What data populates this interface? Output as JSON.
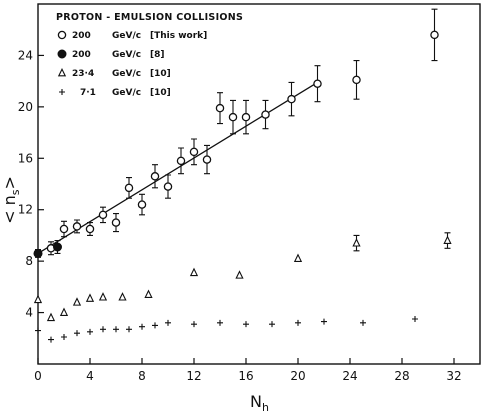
{
  "chart_data": {
    "type": "scatter",
    "title": "",
    "xlabel": "N",
    "xlabel_sub": "h",
    "ylabel": "< n",
    "ylabel_sub": "s",
    "ylabel_tail": ">",
    "xlim": [
      0,
      34
    ],
    "ylim": [
      0,
      28
    ],
    "xticks": [
      0,
      4,
      8,
      12,
      16,
      20,
      24,
      28,
      32
    ],
    "yticks": [
      4,
      8,
      12,
      16,
      20,
      24
    ],
    "grid": false,
    "legend_position": "top-left",
    "legend_title": "PROTON - EMULSION COLLISIONS",
    "series": [
      {
        "name": "200 GeV/c [This work]",
        "marker": "open-circle",
        "x": [
          1,
          2,
          3,
          4,
          5,
          6,
          7,
          8,
          9,
          10,
          11,
          12,
          13,
          14,
          15,
          16,
          17.5,
          19.5,
          21.5,
          24.5,
          30.5
        ],
        "y": [
          9.0,
          10.5,
          10.7,
          10.5,
          11.6,
          11.0,
          13.7,
          12.4,
          14.6,
          13.8,
          15.8,
          16.5,
          15.9,
          19.9,
          19.2,
          19.2,
          19.4,
          20.6,
          21.8,
          22.1,
          25.6
        ],
        "err": [
          0.5,
          0.6,
          0.5,
          0.5,
          0.6,
          0.7,
          0.8,
          0.8,
          0.9,
          0.9,
          1.0,
          1.0,
          1.1,
          1.2,
          1.3,
          1.3,
          1.1,
          1.3,
          1.4,
          1.5,
          2.0
        ]
      },
      {
        "name": "200 GeV/c [8]",
        "marker": "filled-circle",
        "x": [
          0,
          1.5
        ],
        "y": [
          8.6,
          9.1
        ],
        "err": [
          0.3,
          0.5
        ]
      },
      {
        "name": "23.4 GeV/c [10]",
        "marker": "open-triangle",
        "x": [
          0,
          1,
          2,
          3,
          4,
          5,
          6.5,
          8.5,
          12,
          15.5,
          20,
          24.5,
          31.5
        ],
        "y": [
          5.0,
          3.6,
          4.0,
          4.8,
          5.1,
          5.2,
          5.2,
          5.4,
          7.1,
          6.9,
          8.2,
          9.4,
          9.6
        ],
        "err": [
          0,
          0,
          0,
          0,
          0,
          0,
          0,
          0,
          0,
          0,
          0,
          0.6,
          0.6
        ]
      },
      {
        "name": "7.1 GeV/c [10]",
        "marker": "plus",
        "x": [
          0,
          1,
          2,
          3,
          4,
          5,
          6,
          7,
          8,
          9,
          10,
          12,
          14,
          16,
          18,
          20,
          22,
          25,
          29
        ],
        "y": [
          2.6,
          1.9,
          2.1,
          2.4,
          2.5,
          2.7,
          2.7,
          2.7,
          2.9,
          3.0,
          3.2,
          3.1,
          3.2,
          3.1,
          3.1,
          3.2,
          3.3,
          3.2,
          3.5
        ],
        "err": [
          0,
          0,
          0,
          0,
          0,
          0,
          0,
          0,
          0,
          0,
          0,
          0,
          0,
          0,
          0,
          0,
          0,
          0,
          0
        ]
      }
    ],
    "fit_line": {
      "x": [
        0,
        21.5
      ],
      "y": [
        8.6,
        21.9
      ]
    },
    "legend": [
      {
        "marker": "open-circle",
        "energy": "200",
        "unit": "GeV/c",
        "ref": "[This work]"
      },
      {
        "marker": "filled-circle",
        "energy": "200",
        "unit": "GeV/c",
        "ref": "[8]"
      },
      {
        "marker": "open-triangle",
        "energy": "23·4",
        "unit": "GeV/c",
        "ref": "[10]"
      },
      {
        "marker": "plus",
        "energy": "7·1",
        "unit": "GeV/c",
        "ref": "[10]"
      }
    ]
  }
}
